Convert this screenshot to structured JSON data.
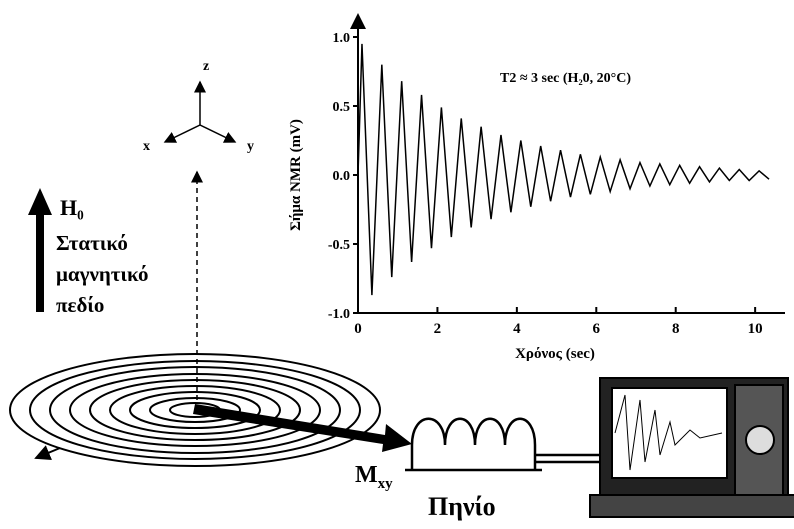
{
  "chart_data": {
    "type": "line",
    "ylabel": "Σήμα NMR (mV)",
    "xlabel": "Χρόνος (sec)",
    "annotation": "T2 ≈ 3 sec (H₂0, 20°C)",
    "color": "#000000",
    "x": [
      0,
      0.1,
      0.35,
      0.6,
      0.85,
      1.1,
      1.35,
      1.6,
      1.85,
      2.1,
      2.35,
      2.6,
      2.85,
      3.1,
      3.35,
      3.6,
      3.85,
      4.1,
      4.35,
      4.6,
      4.85,
      5.1,
      5.35,
      5.6,
      5.85,
      6.1,
      6.35,
      6.6,
      6.85,
      7.1,
      7.35,
      7.6,
      7.85,
      8.1,
      8.35,
      8.6,
      8.85,
      9.1,
      9.35,
      9.6,
      9.85,
      10.1,
      10.35
    ],
    "values": [
      0,
      0.95,
      -0.87,
      0.8,
      -0.74,
      0.68,
      -0.63,
      0.58,
      -0.53,
      0.49,
      -0.45,
      0.41,
      -0.38,
      0.35,
      -0.32,
      0.29,
      -0.27,
      0.25,
      -0.23,
      0.21,
      -0.19,
      0.18,
      -0.16,
      0.15,
      -0.14,
      0.13,
      -0.12,
      0.11,
      -0.1,
      0.09,
      -0.08,
      0.08,
      -0.07,
      0.07,
      -0.06,
      0.06,
      -0.05,
      0.05,
      -0.04,
      0.04,
      -0.04,
      0.03,
      -0.03
    ],
    "xlim": [
      0,
      10.5
    ],
    "ylim": [
      -1,
      1
    ],
    "xticks": [
      0,
      2,
      4,
      6,
      8,
      10
    ],
    "yticks": [
      {
        "value": 1,
        "label": "1.0"
      },
      {
        "value": 0.5,
        "label": "0.5"
      },
      {
        "value": 0,
        "label": "0.0"
      },
      {
        "value": -0.5,
        "label": "-0.5"
      },
      {
        "value": -1,
        "label": "-1.0"
      }
    ]
  },
  "labels": {
    "z": "z",
    "x": "x",
    "y": "y",
    "field": "H₀",
    "field_lines": [
      "Στατικό",
      "μαγνητικό",
      "πεδίο"
    ],
    "magnetization": "M",
    "magnetization_sub": "xy",
    "coil": "Πηνίο"
  }
}
